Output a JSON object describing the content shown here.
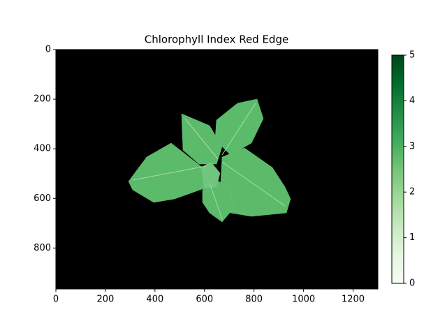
{
  "chart_data": {
    "type": "image",
    "title": "Chlorophyll Index Red Edge",
    "xlim": [
      0,
      1300
    ],
    "xticks": [
      0,
      200,
      400,
      600,
      800,
      1000,
      1200
    ],
    "ylim": [
      965,
      0
    ],
    "yticks": [
      0,
      200,
      400,
      600,
      800
    ],
    "colorbar": {
      "colormap": "Greens",
      "lim": [
        0,
        5
      ],
      "ticks": [
        0,
        1,
        2,
        3,
        4,
        5
      ]
    }
  }
}
